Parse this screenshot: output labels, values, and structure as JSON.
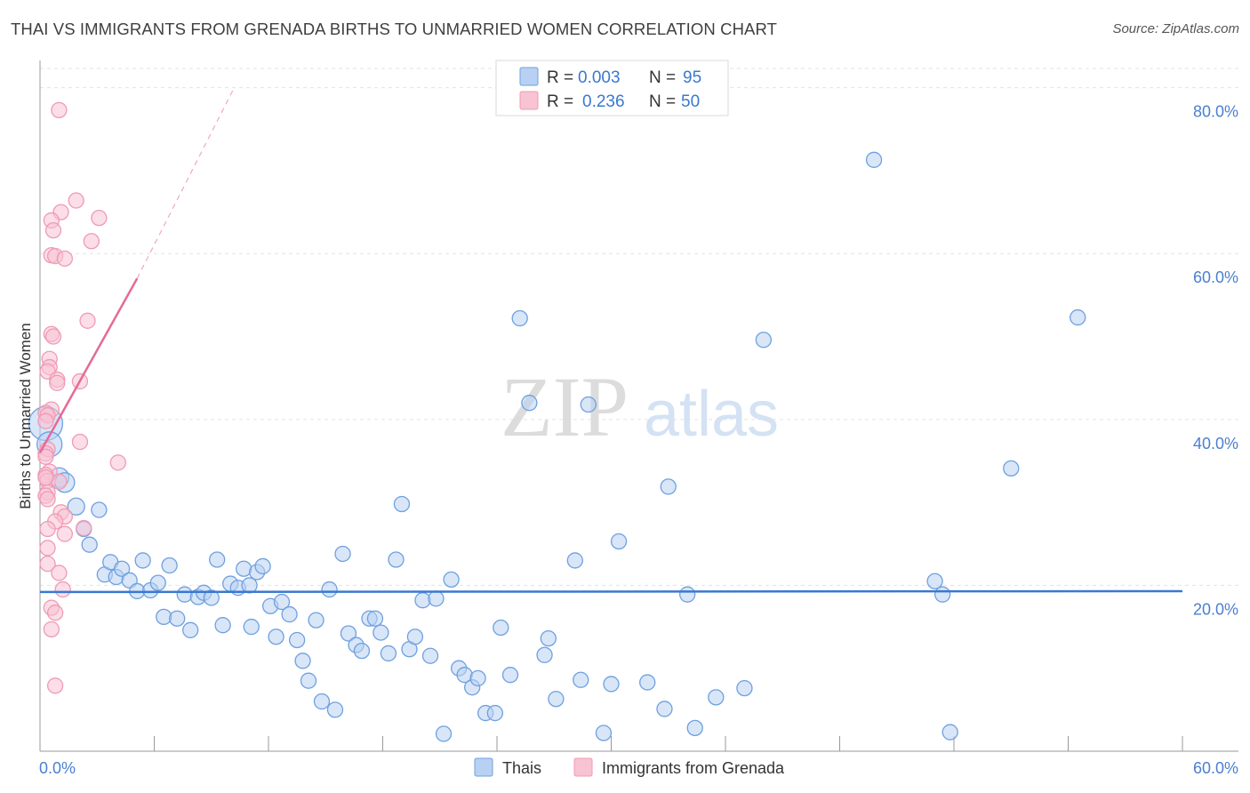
{
  "header": {
    "title": "THAI VS IMMIGRANTS FROM GRENADA BIRTHS TO UNMARRIED WOMEN CORRELATION CHART",
    "source": "Source: ZipAtlas.com"
  },
  "watermark": {
    "zip": "ZIP",
    "atlas": "atlas"
  },
  "colors": {
    "blue": "#6fa0e0",
    "blue_fill": "#b8d1f3",
    "blue_line": "#3a78d0",
    "pink": "#f09ab5",
    "pink_fill": "#f8c3d3",
    "pink_line": "#e56a98",
    "axis_text": "#4a7fd0",
    "grid": "#e3e3e3"
  },
  "legend_top": {
    "rows": [
      {
        "r_label": "R =",
        "r_value": "0.003",
        "n_label": "N =",
        "n_value": "95"
      },
      {
        "r_label": "R =",
        "r_value": "0.236",
        "n_label": "N =",
        "n_value": "50"
      }
    ]
  },
  "legend_bottom": {
    "items": [
      "Thais",
      "Immigrants from Grenada"
    ]
  },
  "chart_data": {
    "type": "scatter",
    "title": "THAI VS IMMIGRANTS FROM GRENADA BIRTHS TO UNMARRIED WOMEN CORRELATION CHART",
    "xlabel": "",
    "ylabel": "Births to Unmarried Women",
    "xlim": [
      0,
      60
    ],
    "ylim": [
      0,
      82
    ],
    "x_tick_labels": [
      "0.0%",
      "60.0%"
    ],
    "y_ticks": [
      20,
      40,
      60,
      80
    ],
    "y_tick_labels": [
      "20.0%",
      "40.0%",
      "60.0%",
      "80.0%"
    ],
    "grid": true,
    "legend_position": "top-center",
    "series": [
      {
        "name": "Thais",
        "R": 0.003,
        "N": 95,
        "trend": {
          "x": [
            0,
            60
          ],
          "y": [
            19.2,
            19.3
          ]
        },
        "points": [
          [
            0.3,
            39.5
          ],
          [
            0.5,
            37.0
          ],
          [
            1.0,
            33.0
          ],
          [
            1.3,
            32.4
          ],
          [
            1.9,
            29.5
          ],
          [
            2.3,
            26.8
          ],
          [
            2.6,
            24.9
          ],
          [
            3.1,
            29.1
          ],
          [
            3.4,
            21.3
          ],
          [
            3.7,
            22.8
          ],
          [
            4.0,
            21.0
          ],
          [
            4.3,
            22.0
          ],
          [
            4.7,
            20.6
          ],
          [
            5.1,
            19.3
          ],
          [
            5.4,
            23.0
          ],
          [
            5.8,
            19.4
          ],
          [
            6.2,
            20.3
          ],
          [
            6.5,
            16.2
          ],
          [
            6.8,
            22.4
          ],
          [
            7.2,
            16.0
          ],
          [
            7.6,
            18.9
          ],
          [
            7.9,
            14.6
          ],
          [
            8.3,
            18.6
          ],
          [
            8.6,
            19.1
          ],
          [
            9.0,
            18.5
          ],
          [
            9.3,
            23.1
          ],
          [
            9.6,
            15.2
          ],
          [
            10.0,
            20.2
          ],
          [
            10.4,
            19.7
          ],
          [
            10.7,
            22.0
          ],
          [
            11.1,
            15.0
          ],
          [
            11.4,
            21.6
          ],
          [
            11.7,
            22.3
          ],
          [
            12.1,
            17.5
          ],
          [
            12.4,
            13.8
          ],
          [
            12.7,
            18.0
          ],
          [
            13.1,
            16.5
          ],
          [
            13.5,
            13.4
          ],
          [
            13.8,
            10.9
          ],
          [
            14.1,
            8.5
          ],
          [
            14.5,
            15.8
          ],
          [
            14.8,
            6.0
          ],
          [
            15.2,
            19.5
          ],
          [
            15.5,
            5.0
          ],
          [
            15.9,
            23.8
          ],
          [
            16.2,
            14.2
          ],
          [
            16.6,
            12.8
          ],
          [
            16.9,
            12.1
          ],
          [
            17.3,
            16.0
          ],
          [
            17.6,
            16.0
          ],
          [
            17.9,
            14.3
          ],
          [
            18.3,
            11.8
          ],
          [
            18.7,
            23.1
          ],
          [
            19.0,
            29.8
          ],
          [
            19.4,
            12.3
          ],
          [
            19.7,
            13.8
          ],
          [
            20.1,
            18.2
          ],
          [
            20.5,
            11.5
          ],
          [
            20.8,
            18.4
          ],
          [
            21.2,
            2.1
          ],
          [
            21.6,
            20.7
          ],
          [
            22.0,
            10.0
          ],
          [
            22.3,
            9.2
          ],
          [
            22.7,
            7.7
          ],
          [
            23.0,
            8.8
          ],
          [
            23.4,
            4.6
          ],
          [
            23.9,
            4.6
          ],
          [
            24.2,
            14.9
          ],
          [
            24.7,
            9.2
          ],
          [
            25.2,
            52.2
          ],
          [
            25.7,
            42.0
          ],
          [
            26.5,
            11.6
          ],
          [
            26.7,
            13.6
          ],
          [
            27.1,
            6.3
          ],
          [
            28.1,
            23.0
          ],
          [
            28.4,
            8.6
          ],
          [
            28.8,
            41.8
          ],
          [
            29.6,
            2.2
          ],
          [
            30.0,
            8.1
          ],
          [
            30.4,
            25.3
          ],
          [
            31.9,
            8.3
          ],
          [
            32.8,
            5.1
          ],
          [
            33.0,
            31.9
          ],
          [
            34.0,
            18.9
          ],
          [
            34.4,
            2.8
          ],
          [
            35.5,
            6.5
          ],
          [
            37.0,
            7.6
          ],
          [
            38.0,
            49.6
          ],
          [
            43.8,
            71.3
          ],
          [
            47.0,
            20.5
          ],
          [
            47.4,
            18.9
          ],
          [
            47.8,
            2.3
          ],
          [
            51.0,
            34.1
          ],
          [
            54.5,
            52.3
          ],
          [
            11.0,
            20.0
          ]
        ]
      },
      {
        "name": "Immigrants from Grenada",
        "R": 0.236,
        "N": 50,
        "trend": {
          "x": [
            0,
            5.1
          ],
          "y": [
            36.0,
            57.0
          ]
        },
        "trend_extension": {
          "x": [
            5.1,
            10.2
          ],
          "y": [
            57.0,
            80.0
          ]
        },
        "points": [
          [
            1.0,
            77.3
          ],
          [
            1.9,
            66.4
          ],
          [
            1.1,
            65.0
          ],
          [
            3.1,
            64.3
          ],
          [
            0.6,
            64.0
          ],
          [
            0.7,
            62.8
          ],
          [
            2.7,
            61.5
          ],
          [
            0.6,
            59.8
          ],
          [
            0.8,
            59.7
          ],
          [
            1.3,
            59.4
          ],
          [
            2.5,
            51.9
          ],
          [
            0.6,
            50.3
          ],
          [
            0.7,
            50.0
          ],
          [
            0.5,
            47.3
          ],
          [
            0.5,
            46.3
          ],
          [
            0.4,
            45.8
          ],
          [
            0.9,
            44.8
          ],
          [
            0.9,
            44.4
          ],
          [
            2.1,
            44.6
          ],
          [
            0.6,
            41.2
          ],
          [
            0.3,
            40.8
          ],
          [
            0.4,
            40.5
          ],
          [
            0.3,
            39.8
          ],
          [
            2.1,
            37.3
          ],
          [
            0.4,
            36.4
          ],
          [
            0.3,
            35.9
          ],
          [
            0.3,
            35.5
          ],
          [
            4.1,
            34.8
          ],
          [
            0.5,
            33.7
          ],
          [
            0.3,
            33.3
          ],
          [
            0.4,
            32.6
          ],
          [
            1.0,
            32.5
          ],
          [
            0.4,
            31.2
          ],
          [
            0.3,
            30.8
          ],
          [
            0.4,
            30.4
          ],
          [
            1.1,
            28.8
          ],
          [
            1.3,
            28.3
          ],
          [
            0.8,
            27.7
          ],
          [
            0.4,
            26.8
          ],
          [
            2.3,
            26.9
          ],
          [
            1.3,
            26.2
          ],
          [
            0.4,
            24.5
          ],
          [
            0.4,
            22.6
          ],
          [
            1.0,
            21.5
          ],
          [
            1.2,
            19.5
          ],
          [
            0.6,
            17.3
          ],
          [
            0.8,
            16.7
          ],
          [
            0.6,
            14.7
          ],
          [
            0.8,
            7.9
          ],
          [
            0.3,
            33.0
          ]
        ]
      }
    ]
  }
}
